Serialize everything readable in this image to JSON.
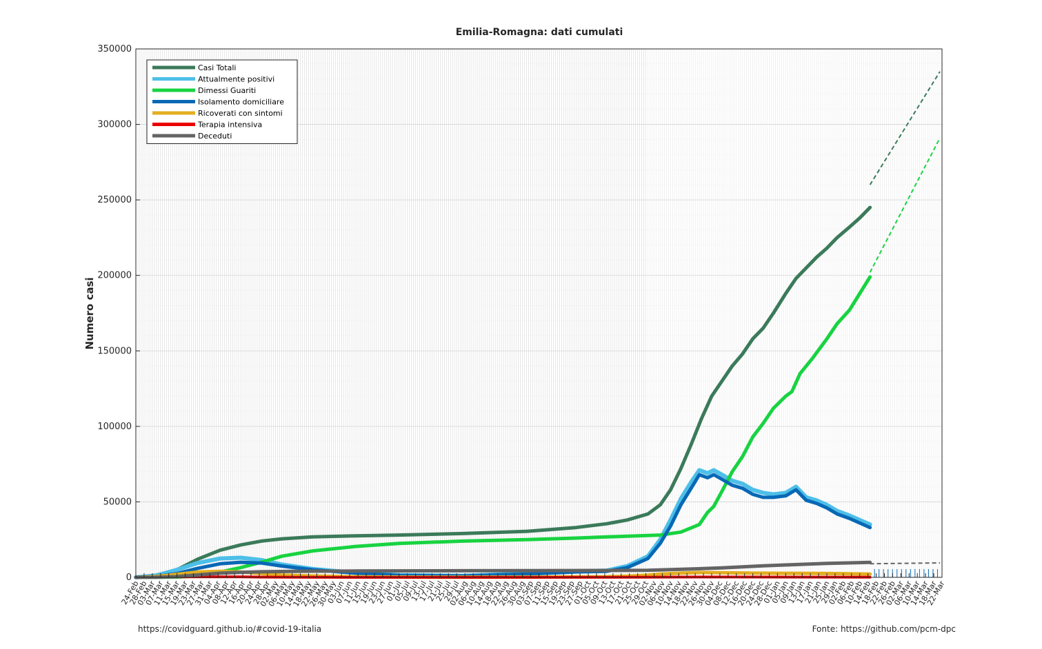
{
  "chart_data": {
    "type": "line",
    "title": "Emilia-Romagna: dati cumulati",
    "ylabel": "Numero casi",
    "ylim": [
      0,
      350000
    ],
    "yticks": [
      0,
      50000,
      100000,
      150000,
      200000,
      250000,
      300000,
      350000
    ],
    "yticks_labels": [
      "0",
      "50000",
      "100000",
      "150000",
      "200000",
      "250000",
      "300000",
      "350000"
    ],
    "x_start": "2020-02-24",
    "x_end": "2021-03-22",
    "x_tick_labels": [
      "24-Feb",
      "28-Feb",
      "03-Mar",
      "07-Mar",
      "11-Mar",
      "15-Mar",
      "19-Mar",
      "23-Mar",
      "27-Mar",
      "31-Mar",
      "04-Apr",
      "08-Apr",
      "12-Apr",
      "16-Apr",
      "20-Apr",
      "24-Apr",
      "28-Apr",
      "02-May",
      "06-May",
      "10-May",
      "14-May",
      "18-May",
      "22-May",
      "26-May",
      "30-May",
      "03-Jun",
      "07-Jun",
      "11-Jun",
      "15-Jun",
      "19-Jun",
      "23-Jun",
      "27-Jun",
      "01-Jul",
      "05-Jul",
      "09-Jul",
      "13-Jul",
      "17-Jul",
      "21-Jul",
      "25-Jul",
      "29-Jul",
      "02-Aug",
      "06-Aug",
      "10-Aug",
      "14-Aug",
      "18-Aug",
      "22-Aug",
      "26-Aug",
      "30-Aug",
      "03-Sep",
      "07-Sep",
      "11-Sep",
      "15-Sep",
      "19-Sep",
      "23-Sep",
      "27-Sep",
      "01-Oct",
      "05-Oct",
      "09-Oct",
      "13-Oct",
      "17-Oct",
      "21-Oct",
      "25-Oct",
      "29-Oct",
      "02-Nov",
      "06-Nov",
      "10-Nov",
      "14-Nov",
      "18-Nov",
      "22-Nov",
      "26-Nov",
      "30-Nov",
      "04-Dec",
      "08-Dec",
      "12-Dec",
      "16-Dec",
      "20-Dec",
      "24-Dec",
      "28-Dec",
      "01-Jan",
      "05-Jan",
      "09-Jan",
      "13-Jan",
      "17-Jan",
      "21-Jan",
      "25-Jan",
      "29-Jan",
      "02-Feb",
      "06-Feb",
      "10-Feb",
      "14-Feb",
      "18-Feb",
      "22-Feb",
      "26-Feb",
      "02-Mar",
      "06-Mar",
      "10-Mar",
      "14-Mar",
      "18-Mar",
      "22-Mar"
    ],
    "grid": true,
    "legend_position": "top-left",
    "series": [
      {
        "name": "Casi Totali",
        "color": "#3b7a5a",
        "width": 5,
        "points": [
          [
            "2020-02-24",
            0
          ],
          [
            "2020-03-05",
            1500
          ],
          [
            "2020-03-15",
            5000
          ],
          [
            "2020-03-25",
            12000
          ],
          [
            "2020-04-05",
            18000
          ],
          [
            "2020-04-15",
            21500
          ],
          [
            "2020-04-25",
            24000
          ],
          [
            "2020-05-05",
            25500
          ],
          [
            "2020-05-20",
            26800
          ],
          [
            "2020-06-10",
            27500
          ],
          [
            "2020-07-01",
            28000
          ],
          [
            "2020-08-01",
            29000
          ],
          [
            "2020-09-01",
            30500
          ],
          [
            "2020-09-25",
            33000
          ],
          [
            "2020-10-10",
            35500
          ],
          [
            "2020-10-20",
            38000
          ],
          [
            "2020-10-30",
            42000
          ],
          [
            "2020-11-05",
            48000
          ],
          [
            "2020-11-10",
            58000
          ],
          [
            "2020-11-15",
            72000
          ],
          [
            "2020-11-20",
            88000
          ],
          [
            "2020-11-25",
            105000
          ],
          [
            "2020-11-30",
            120000
          ],
          [
            "2020-12-05",
            130000
          ],
          [
            "2020-12-10",
            140000
          ],
          [
            "2020-12-15",
            148000
          ],
          [
            "2020-12-20",
            158000
          ],
          [
            "2020-12-25",
            165000
          ],
          [
            "2020-12-30",
            175000
          ],
          [
            "2021-01-05",
            188000
          ],
          [
            "2021-01-10",
            198000
          ],
          [
            "2021-01-15",
            205000
          ],
          [
            "2021-01-20",
            212000
          ],
          [
            "2021-01-25",
            218000
          ],
          [
            "2021-01-30",
            225000
          ],
          [
            "2021-02-05",
            232000
          ],
          [
            "2021-02-10",
            238000
          ],
          [
            "2021-02-15",
            245000
          ]
        ]
      },
      {
        "name": "Attualmente positivi",
        "color": "#4dbfe8",
        "width": 6,
        "points": [
          [
            "2020-02-24",
            0
          ],
          [
            "2020-03-05",
            1200
          ],
          [
            "2020-03-15",
            5000
          ],
          [
            "2020-03-25",
            9500
          ],
          [
            "2020-04-05",
            12500
          ],
          [
            "2020-04-15",
            13000
          ],
          [
            "2020-04-25",
            11500
          ],
          [
            "2020-05-05",
            8500
          ],
          [
            "2020-05-20",
            5500
          ],
          [
            "2020-06-10",
            3000
          ],
          [
            "2020-07-01",
            1500
          ],
          [
            "2020-08-01",
            1000
          ],
          [
            "2020-09-01",
            2500
          ],
          [
            "2020-09-25",
            4000
          ],
          [
            "2020-10-10",
            4500
          ],
          [
            "2020-10-20",
            7500
          ],
          [
            "2020-10-30",
            14000
          ],
          [
            "2020-11-05",
            25000
          ],
          [
            "2020-11-10",
            38000
          ],
          [
            "2020-11-15",
            52000
          ],
          [
            "2020-11-20",
            63000
          ],
          [
            "2020-11-24",
            71000
          ],
          [
            "2020-11-28",
            69000
          ],
          [
            "2020-12-01",
            71000
          ],
          [
            "2020-12-05",
            68000
          ],
          [
            "2020-12-10",
            64000
          ],
          [
            "2020-12-15",
            62000
          ],
          [
            "2020-12-20",
            58000
          ],
          [
            "2020-12-25",
            56000
          ],
          [
            "2020-12-30",
            55000
          ],
          [
            "2021-01-05",
            56000
          ],
          [
            "2021-01-10",
            60000
          ],
          [
            "2021-01-15",
            53000
          ],
          [
            "2021-01-20",
            51000
          ],
          [
            "2021-01-25",
            48000
          ],
          [
            "2021-01-30",
            44000
          ],
          [
            "2021-02-05",
            41000
          ],
          [
            "2021-02-10",
            38000
          ],
          [
            "2021-02-15",
            35000
          ]
        ]
      },
      {
        "name": "Dimessi Guariti",
        "color": "#18d341",
        "width": 5,
        "points": [
          [
            "2020-02-24",
            0
          ],
          [
            "2020-03-15",
            200
          ],
          [
            "2020-03-25",
            1000
          ],
          [
            "2020-04-05",
            3500
          ],
          [
            "2020-04-15",
            6500
          ],
          [
            "2020-04-25",
            10000
          ],
          [
            "2020-05-05",
            14000
          ],
          [
            "2020-05-20",
            17500
          ],
          [
            "2020-06-10",
            20500
          ],
          [
            "2020-07-01",
            22500
          ],
          [
            "2020-08-01",
            24000
          ],
          [
            "2020-09-01",
            25000
          ],
          [
            "2020-09-25",
            26000
          ],
          [
            "2020-10-10",
            26800
          ],
          [
            "2020-10-25",
            27500
          ],
          [
            "2020-11-05",
            28000
          ],
          [
            "2020-11-15",
            30000
          ],
          [
            "2020-11-24",
            35000
          ],
          [
            "2020-11-28",
            43000
          ],
          [
            "2020-12-01",
            47000
          ],
          [
            "2020-12-05",
            57000
          ],
          [
            "2020-12-10",
            70000
          ],
          [
            "2020-12-15",
            80000
          ],
          [
            "2020-12-20",
            93000
          ],
          [
            "2020-12-25",
            102000
          ],
          [
            "2020-12-30",
            112000
          ],
          [
            "2021-01-05",
            120000
          ],
          [
            "2021-01-08",
            123000
          ],
          [
            "2021-01-12",
            135000
          ],
          [
            "2021-01-18",
            145000
          ],
          [
            "2021-01-25",
            158000
          ],
          [
            "2021-01-30",
            168000
          ],
          [
            "2021-02-05",
            177000
          ],
          [
            "2021-02-10",
            188000
          ],
          [
            "2021-02-15",
            199000
          ]
        ]
      },
      {
        "name": "Isolamento domiciliare",
        "color": "#0868b5",
        "width": 5,
        "points": [
          [
            "2020-02-24",
            0
          ],
          [
            "2020-03-05",
            600
          ],
          [
            "2020-03-15",
            2500
          ],
          [
            "2020-03-25",
            6000
          ],
          [
            "2020-04-05",
            9000
          ],
          [
            "2020-04-15",
            10000
          ],
          [
            "2020-04-25",
            9500
          ],
          [
            "2020-05-05",
            7500
          ],
          [
            "2020-05-20",
            5000
          ],
          [
            "2020-06-10",
            2800
          ],
          [
            "2020-07-01",
            1300
          ],
          [
            "2020-08-01",
            900
          ],
          [
            "2020-09-01",
            2200
          ],
          [
            "2020-09-25",
            3600
          ],
          [
            "2020-10-10",
            4000
          ],
          [
            "2020-10-20",
            6500
          ],
          [
            "2020-10-30",
            12500
          ],
          [
            "2020-11-05",
            22500
          ],
          [
            "2020-11-10",
            34000
          ],
          [
            "2020-11-15",
            48000
          ],
          [
            "2020-11-20",
            59000
          ],
          [
            "2020-11-24",
            68000
          ],
          [
            "2020-11-28",
            66000
          ],
          [
            "2020-12-01",
            68000
          ],
          [
            "2020-12-05",
            65000
          ],
          [
            "2020-12-10",
            61000
          ],
          [
            "2020-12-15",
            59000
          ],
          [
            "2020-12-20",
            55000
          ],
          [
            "2020-12-25",
            53000
          ],
          [
            "2020-12-30",
            53000
          ],
          [
            "2021-01-05",
            54000
          ],
          [
            "2021-01-10",
            58000
          ],
          [
            "2021-01-15",
            51000
          ],
          [
            "2021-01-20",
            49000
          ],
          [
            "2021-01-25",
            46000
          ],
          [
            "2021-01-30",
            42000
          ],
          [
            "2021-02-05",
            39000
          ],
          [
            "2021-02-10",
            36000
          ],
          [
            "2021-02-15",
            33000
          ]
        ]
      },
      {
        "name": "Ricoverati con sintomi",
        "color": "#e3ae21",
        "width": 5,
        "points": [
          [
            "2020-02-24",
            0
          ],
          [
            "2020-03-05",
            500
          ],
          [
            "2020-03-15",
            2000
          ],
          [
            "2020-03-25",
            3500
          ],
          [
            "2020-04-05",
            4000
          ],
          [
            "2020-04-15",
            3500
          ],
          [
            "2020-04-25",
            2500
          ],
          [
            "2020-05-05",
            1500
          ],
          [
            "2020-05-20",
            900
          ],
          [
            "2020-06-10",
            400
          ],
          [
            "2020-07-01",
            200
          ],
          [
            "2020-08-01",
            100
          ],
          [
            "2020-09-01",
            200
          ],
          [
            "2020-09-25",
            300
          ],
          [
            "2020-10-10",
            400
          ],
          [
            "2020-10-20",
            800
          ],
          [
            "2020-10-30",
            1500
          ],
          [
            "2020-11-05",
            2200
          ],
          [
            "2020-11-15",
            2800
          ],
          [
            "2020-11-24",
            3200
          ],
          [
            "2020-12-05",
            3100
          ],
          [
            "2020-12-20",
            2800
          ],
          [
            "2021-01-05",
            2700
          ],
          [
            "2021-01-20",
            2600
          ],
          [
            "2021-02-05",
            2400
          ],
          [
            "2021-02-15",
            2200
          ]
        ]
      },
      {
        "name": "Terapia intensiva",
        "color": "#ec0000",
        "width": 4,
        "points": [
          [
            "2020-02-24",
            0
          ],
          [
            "2020-03-05",
            100
          ],
          [
            "2020-03-15",
            300
          ],
          [
            "2020-03-25",
            350
          ],
          [
            "2020-04-05",
            380
          ],
          [
            "2020-04-15",
            300
          ],
          [
            "2020-04-25",
            200
          ],
          [
            "2020-05-05",
            120
          ],
          [
            "2020-05-20",
            60
          ],
          [
            "2020-06-10",
            20
          ],
          [
            "2020-07-01",
            10
          ],
          [
            "2020-08-01",
            5
          ],
          [
            "2020-09-01",
            20
          ],
          [
            "2020-10-10",
            40
          ],
          [
            "2020-10-30",
            100
          ],
          [
            "2020-11-10",
            180
          ],
          [
            "2020-11-24",
            240
          ],
          [
            "2020-12-10",
            220
          ],
          [
            "2021-01-05",
            190
          ],
          [
            "2021-02-15",
            150
          ]
        ]
      },
      {
        "name": "Deceduti",
        "color": "#646464",
        "width": 5,
        "points": [
          [
            "2020-02-24",
            0
          ],
          [
            "2020-03-05",
            50
          ],
          [
            "2020-03-15",
            500
          ],
          [
            "2020-03-25",
            1600
          ],
          [
            "2020-04-05",
            2800
          ],
          [
            "2020-04-15",
            3300
          ],
          [
            "2020-04-25",
            3700
          ],
          [
            "2020-05-05",
            3900
          ],
          [
            "2020-05-20",
            4100
          ],
          [
            "2020-06-10",
            4200
          ],
          [
            "2020-07-01",
            4300
          ],
          [
            "2020-08-01",
            4400
          ],
          [
            "2020-09-01",
            4450
          ],
          [
            "2020-09-25",
            4500
          ],
          [
            "2020-10-10",
            4550
          ],
          [
            "2020-10-30",
            4700
          ],
          [
            "2020-11-10",
            5100
          ],
          [
            "2020-11-24",
            5700
          ],
          [
            "2020-12-05",
            6300
          ],
          [
            "2020-12-15",
            7000
          ],
          [
            "2020-12-25",
            7600
          ],
          [
            "2021-01-05",
            8200
          ],
          [
            "2021-01-15",
            8700
          ],
          [
            "2021-01-25",
            9200
          ],
          [
            "2021-02-05",
            9600
          ],
          [
            "2021-02-15",
            9900
          ]
        ]
      }
    ],
    "projections": [
      {
        "color": "#3b7a5a",
        "points": [
          [
            "2021-02-15",
            260000
          ],
          [
            "2021-03-21",
            335000
          ]
        ]
      },
      {
        "color": "#18d341",
        "points": [
          [
            "2021-02-15",
            202000
          ],
          [
            "2021-03-21",
            291000
          ]
        ]
      },
      {
        "color": "#646464",
        "points": [
          [
            "2021-02-15",
            9000
          ],
          [
            "2021-03-21",
            9600
          ]
        ]
      }
    ]
  },
  "footer": {
    "left": "https://covidguard.github.io/#covid-19-italia",
    "right": "Fonte: https://github.com/pcm-dpc"
  }
}
